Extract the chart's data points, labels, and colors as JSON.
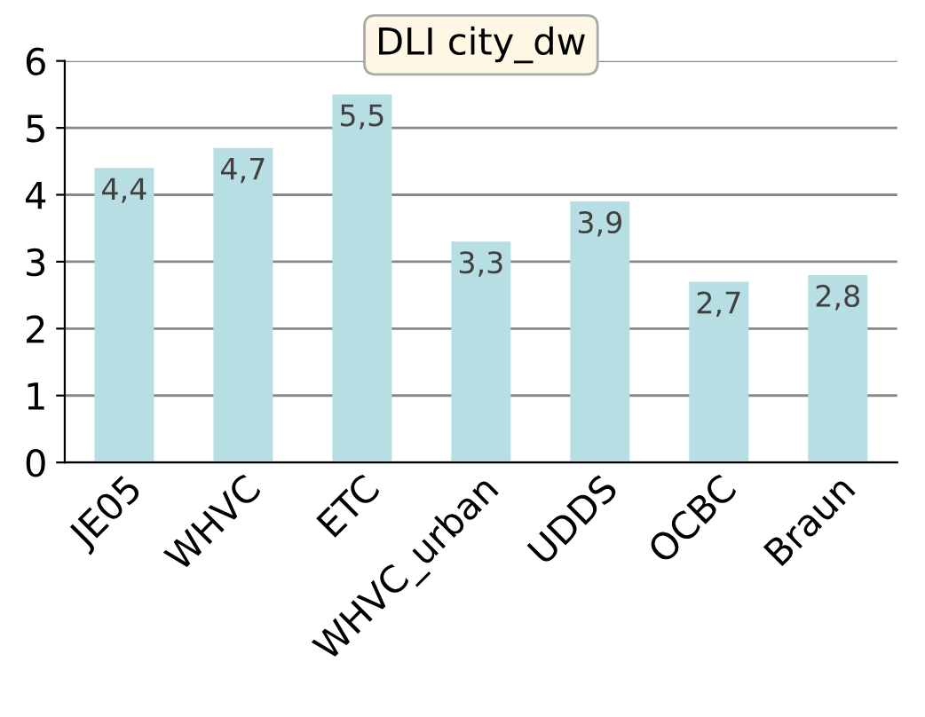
{
  "chart_data": {
    "type": "bar",
    "title": "DLI city_dw",
    "categories": [
      "JE05",
      "WHVC",
      "ETC",
      "WHVC_urban",
      "UDDS",
      "OCBC",
      "Braun"
    ],
    "values": [
      4.4,
      4.7,
      5.5,
      3.3,
      3.9,
      2.7,
      2.8
    ],
    "value_labels": [
      "4,4",
      "4,7",
      "5,5",
      "3,3",
      "3,9",
      "2,7",
      "2,8"
    ],
    "color": "#b7dee2",
    "ylim": [
      0,
      6
    ],
    "yticks": [
      0,
      1,
      2,
      3,
      4,
      5,
      6
    ],
    "grid": "y"
  }
}
